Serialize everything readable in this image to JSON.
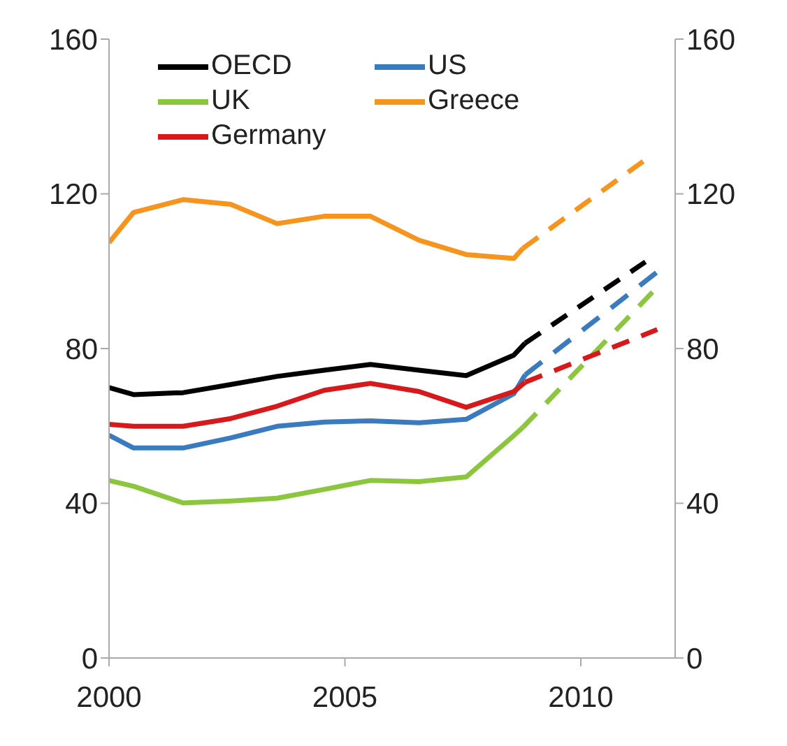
{
  "chart_data": {
    "type": "line",
    "xlim": [
      2000,
      2012
    ],
    "xticks": [
      2000,
      2005,
      2010
    ],
    "ylim": [
      0,
      160
    ],
    "yticks": [
      0,
      40,
      80,
      120,
      160
    ],
    "y2lim": [
      0,
      160
    ],
    "y2ticks": [
      0,
      40,
      80,
      120,
      160
    ],
    "legend": "top left",
    "marker": "none",
    "series": [
      {
        "name": "OECD",
        "color": "#000000",
        "line_style": "solid",
        "x": [
          2000,
          2000.52,
          2001.57,
          2002.58,
          2003.56,
          2004.56,
          2005.54,
          2006.57,
          2007.57,
          2008.58,
          2008.82
        ],
        "values": [
          69.9,
          68.1,
          68.6,
          70.7,
          72.8,
          74.4,
          75.9,
          74.4,
          73,
          78.3,
          81.4
        ]
      },
      {
        "name": "US",
        "color": "#3a7bbf",
        "line_style": "solid",
        "x": [
          2000,
          2000.52,
          2001.57,
          2002.58,
          2003.56,
          2004.56,
          2005.54,
          2006.57,
          2007.57,
          2008.58,
          2008.82
        ],
        "values": [
          57.6,
          54.3,
          54.3,
          56.9,
          59.9,
          61,
          61.3,
          60.8,
          61.7,
          68.3,
          73.2
        ]
      },
      {
        "name": "UK",
        "color": "#8cc63f",
        "line_style": "solid",
        "x": [
          2000,
          2000.52,
          2001.57,
          2002.58,
          2003.56,
          2004.56,
          2005.54,
          2006.57,
          2007.57,
          2008.58,
          2008.77
        ],
        "values": [
          45.9,
          44.4,
          40.1,
          40.6,
          41.3,
          43.6,
          45.9,
          45.6,
          46.8,
          57.5,
          59.6
        ]
      },
      {
        "name": "Greece",
        "color": "#f7941d",
        "line_style": "solid",
        "x": [
          2000,
          2000.52,
          2001.57,
          2002.58,
          2003.56,
          2004.56,
          2005.54,
          2006.57,
          2007.57,
          2008.58,
          2008.77
        ],
        "values": [
          107.4,
          115.2,
          118.5,
          117.3,
          112.3,
          114.2,
          114.2,
          108,
          104.3,
          103.3,
          105.9
        ]
      },
      {
        "name": "Germany",
        "color": "#d7191c",
        "line_style": "solid",
        "x": [
          2000,
          2000.52,
          2001.57,
          2002.58,
          2003.56,
          2004.56,
          2005.54,
          2006.57,
          2007.57,
          2008.58,
          2008.82
        ],
        "values": [
          60.4,
          59.9,
          59.9,
          61.9,
          65.1,
          69.2,
          71,
          68.9,
          64.8,
          68.9,
          71.3
        ]
      },
      {
        "color": "#000000",
        "line_style": "dashed",
        "x": [
          2008.82,
          2011.37
        ],
        "values": [
          81.4,
          102.4
        ]
      },
      {
        "color": "#3a7bbf",
        "line_style": "dashed",
        "x": [
          2008.82,
          2011.62
        ],
        "values": [
          73.2,
          99.8
        ]
      },
      {
        "color": "#8cc63f",
        "line_style": "dashed",
        "x": [
          2008.77,
          2011.52
        ],
        "values": [
          59.6,
          94.6
        ]
      },
      {
        "color": "#f7941d",
        "line_style": "dashed",
        "x": [
          2008.77,
          2011.32
        ],
        "values": [
          105.9,
          128.4
        ]
      },
      {
        "color": "#d7191c",
        "line_style": "dashed",
        "x": [
          2008.82,
          2011.62
        ],
        "values": [
          71.3,
          84.9
        ]
      }
    ]
  }
}
